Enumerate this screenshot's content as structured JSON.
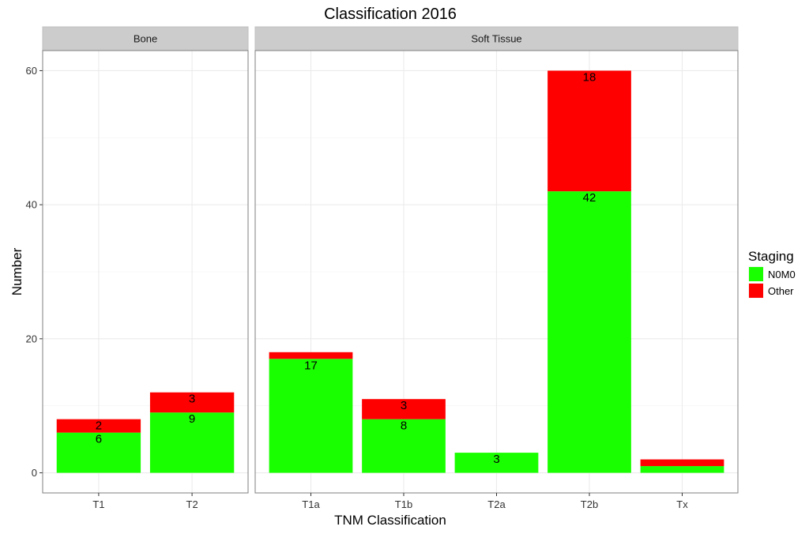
{
  "chart_data": {
    "type": "bar",
    "stacked": true,
    "title": "Classification 2016",
    "xlabel": "TNM Classification",
    "ylabel": "Number",
    "ylim": [
      -3,
      63
    ],
    "yticks": [
      0,
      20,
      40,
      60
    ],
    "grid": true,
    "legend": {
      "title": "Staging",
      "position": "right",
      "entries": [
        {
          "name": "N0M0",
          "color": "#1aff00"
        },
        {
          "name": "Other",
          "color": "#ff0000"
        }
      ]
    },
    "facets": [
      {
        "name": "Bone",
        "categories": [
          "T1",
          "T2"
        ],
        "series": [
          {
            "name": "N0M0",
            "values": [
              6,
              9
            ],
            "labels": [
              "6",
              "9"
            ]
          },
          {
            "name": "Other",
            "values": [
              2,
              3
            ],
            "labels": [
              "2",
              "3"
            ]
          }
        ]
      },
      {
        "name": "Soft Tissue",
        "categories": [
          "T1a",
          "T1b",
          "T2a",
          "T2b",
          "Tx"
        ],
        "series": [
          {
            "name": "N0M0",
            "values": [
              17,
              8,
              3,
              42,
              1
            ],
            "labels": [
              "17",
              "8",
              "3",
              "42",
              ""
            ]
          },
          {
            "name": "Other",
            "values": [
              1,
              3,
              0,
              18,
              1
            ],
            "labels": [
              "",
              "3",
              "",
              "18",
              ""
            ]
          }
        ]
      }
    ]
  }
}
